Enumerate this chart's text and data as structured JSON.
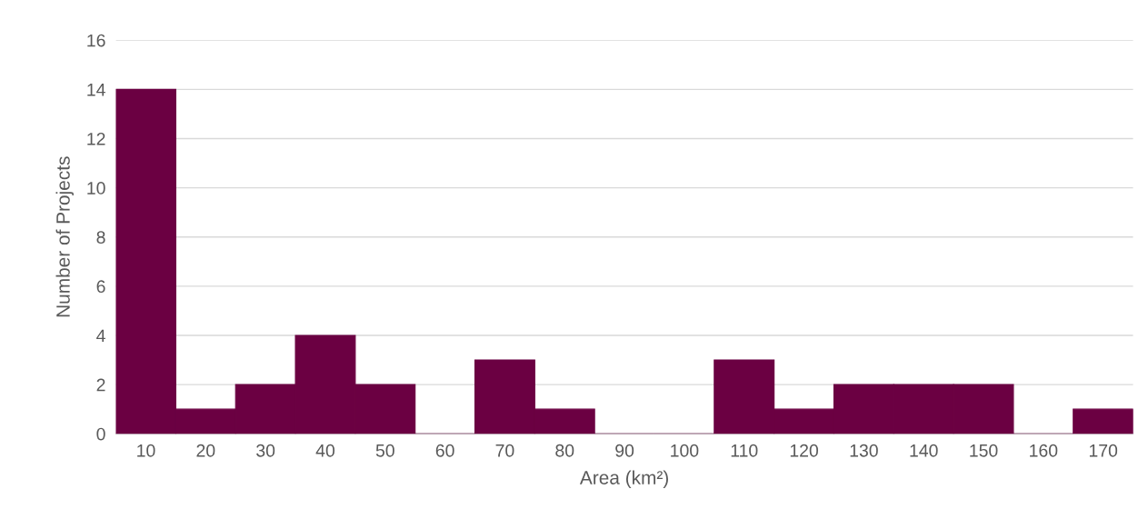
{
  "chart_data": {
    "type": "bar",
    "xlabel": "Area (km²)",
    "ylabel": "Number of Projects",
    "categories": [
      "10",
      "20",
      "30",
      "40",
      "50",
      "60",
      "70",
      "80",
      "90",
      "100",
      "110",
      "120",
      "130",
      "140",
      "150",
      "160",
      "170"
    ],
    "values": [
      14,
      1,
      2,
      4,
      2,
      0,
      3,
      1,
      0,
      0,
      3,
      1,
      2,
      2,
      2,
      0,
      1
    ],
    "color": "#6b0042",
    "ylim": [
      0,
      16
    ],
    "yticks": [
      0,
      2,
      4,
      6,
      8,
      10,
      12,
      14,
      16
    ],
    "grid": "y"
  }
}
